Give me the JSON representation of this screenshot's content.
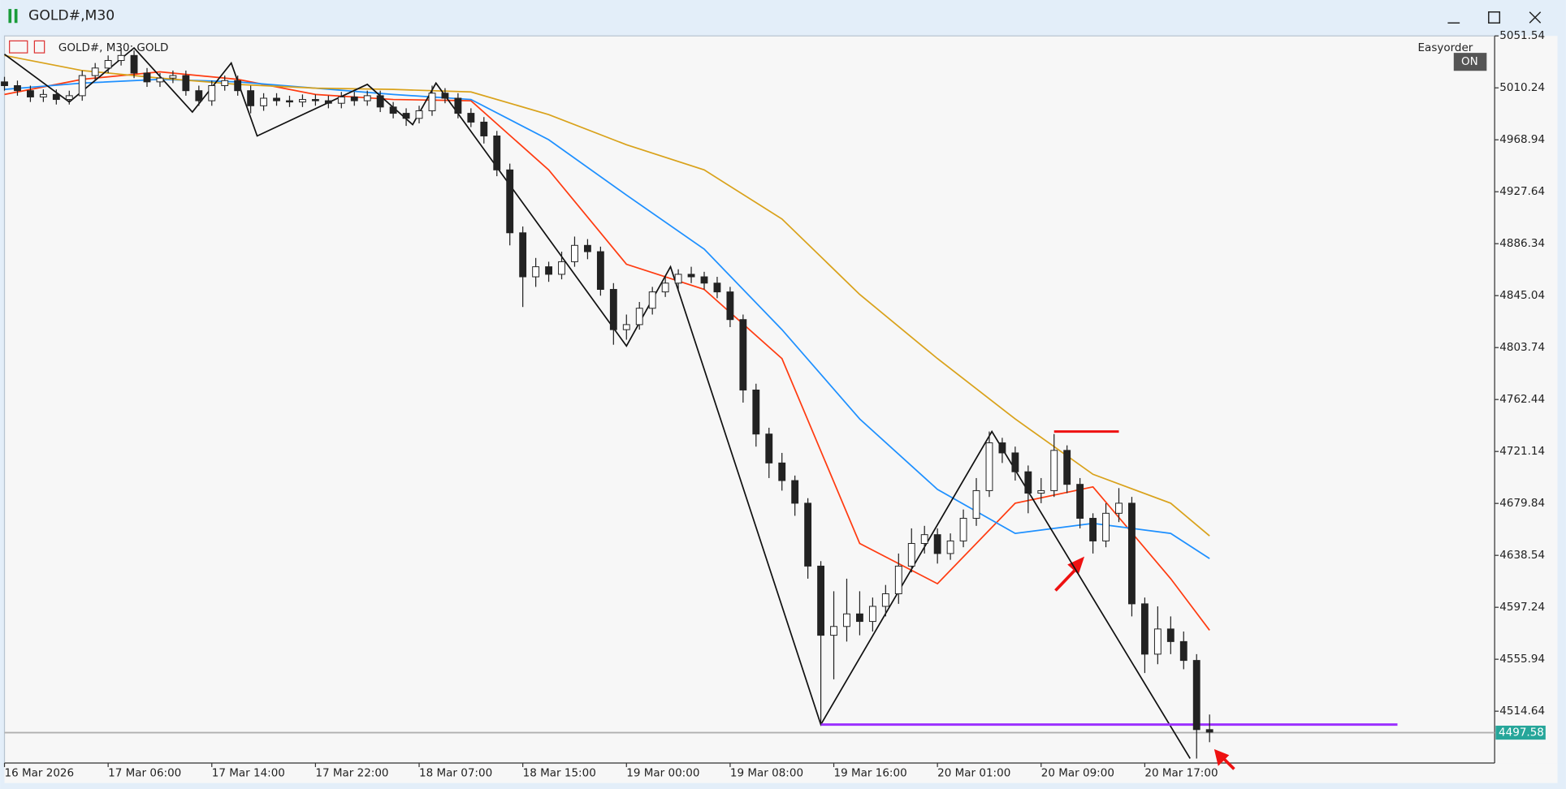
{
  "window": {
    "title": "GOLD#,M30"
  },
  "chart_header": {
    "symbol": "GOLD#, M30:  GOLD"
  },
  "panel": {
    "label": "Easyorder",
    "button": "ON"
  },
  "chart_data": {
    "type": "candlestick",
    "x": [
      0,
      1,
      2,
      3,
      4,
      5,
      6,
      7,
      8,
      9,
      10,
      11,
      12,
      13,
      14,
      15,
      16,
      17,
      18,
      19,
      20,
      21,
      22,
      23,
      24,
      25,
      26,
      27,
      28,
      29,
      30,
      31,
      32,
      33,
      34,
      35,
      36,
      37,
      38,
      39,
      40,
      41,
      42,
      43,
      44,
      45,
      46,
      47,
      48,
      49,
      50,
      51,
      52,
      53,
      54,
      55,
      56,
      57,
      58,
      59,
      60,
      61,
      62,
      63,
      64,
      65,
      66,
      67,
      68,
      69,
      70,
      71,
      72,
      73,
      74,
      75,
      76,
      77,
      78,
      79,
      80,
      81,
      82,
      83,
      84,
      85,
      86,
      87,
      88,
      89,
      90,
      91,
      92,
      93
    ],
    "open": [
      5015,
      5012,
      5008,
      5003,
      5005,
      5001,
      5004,
      5020,
      5026,
      5032,
      5036,
      5022,
      5015,
      5018,
      5020,
      5008,
      5000,
      5012,
      5016,
      5008,
      4996,
      5002,
      5000,
      4999,
      5001,
      5000,
      4998,
      5003,
      5000,
      5004,
      4995,
      4990,
      4986,
      4992,
      5006,
      5002,
      4990,
      4983,
      4972,
      4945,
      4895,
      4860,
      4868,
      4862,
      4872,
      4885,
      4880,
      4850,
      4818,
      4822,
      4835,
      4848,
      4855,
      4862,
      4860,
      4855,
      4848,
      4826,
      4770,
      4735,
      4712,
      4698,
      4680,
      4630,
      4575,
      4582,
      4592,
      4586,
      4598,
      4608,
      4630,
      4648,
      4655,
      4640,
      4650,
      4668,
      4690,
      4728,
      4720,
      4705,
      4688,
      4690,
      4722,
      4695,
      4668,
      4650,
      4672,
      4680,
      4600,
      4560,
      4580,
      4570,
      4555,
      4500
    ],
    "high": [
      5019,
      5016,
      5012,
      5009,
      5009,
      5008,
      5024,
      5030,
      5036,
      5042,
      5040,
      5026,
      5022,
      5024,
      5024,
      5012,
      5016,
      5020,
      5020,
      5012,
      5006,
      5006,
      5004,
      5005,
      5005,
      5004,
      5007,
      5007,
      5008,
      5008,
      4999,
      4994,
      4996,
      5012,
      5010,
      5006,
      4994,
      4987,
      4976,
      4950,
      4900,
      4875,
      4872,
      4880,
      4892,
      4890,
      4884,
      4855,
      4830,
      4840,
      4852,
      4860,
      4866,
      4868,
      4864,
      4860,
      4852,
      4830,
      4775,
      4740,
      4720,
      4702,
      4684,
      4634,
      4610,
      4620,
      4610,
      4605,
      4615,
      4640,
      4660,
      4662,
      4660,
      4656,
      4675,
      4700,
      4737,
      4732,
      4725,
      4710,
      4700,
      4735,
      4726,
      4700,
      4672,
      4680,
      4692,
      4685,
      4605,
      4598,
      4590,
      4578,
      4560,
      4512
    ],
    "low": [
      5008,
      5004,
      4999,
      4999,
      4997,
      4997,
      5000,
      5016,
      5022,
      5028,
      5018,
      5011,
      5011,
      5014,
      5004,
      4996,
      4996,
      5008,
      5004,
      4990,
      4992,
      4996,
      4995,
      4995,
      4996,
      4994,
      4994,
      4996,
      4996,
      4991,
      4986,
      4980,
      4982,
      4988,
      4998,
      4986,
      4979,
      4966,
      4940,
      4885,
      4836,
      4852,
      4856,
      4858,
      4868,
      4874,
      4845,
      4806,
      4810,
      4818,
      4830,
      4844,
      4850,
      4855,
      4850,
      4843,
      4820,
      4760,
      4725,
      4700,
      4690,
      4670,
      4620,
      4504,
      4540,
      4570,
      4575,
      4578,
      4590,
      4600,
      4625,
      4640,
      4632,
      4635,
      4645,
      4662,
      4685,
      4712,
      4698,
      4672,
      4680,
      4685,
      4688,
      4660,
      4640,
      4645,
      4665,
      4590,
      4545,
      4552,
      4560,
      4548,
      4477,
      4490
    ],
    "close": [
      5012,
      5008,
      5003,
      5005,
      5001,
      5004,
      5020,
      5026,
      5032,
      5036,
      5022,
      5015,
      5018,
      5020,
      5008,
      5000,
      5012,
      5016,
      5008,
      4996,
      5002,
      5000,
      4999,
      5001,
      5000,
      4998,
      5003,
      5000,
      5004,
      4995,
      4990,
      4986,
      4992,
      5006,
      5002,
      4990,
      4983,
      4972,
      4945,
      4895,
      4860,
      4868,
      4862,
      4872,
      4885,
      4880,
      4850,
      4818,
      4822,
      4835,
      4848,
      4855,
      4862,
      4860,
      4855,
      4848,
      4826,
      4770,
      4735,
      4712,
      4698,
      4680,
      4630,
      4575,
      4582,
      4592,
      4586,
      4598,
      4608,
      4630,
      4648,
      4655,
      4640,
      4650,
      4668,
      4690,
      4728,
      4720,
      4705,
      4688,
      4690,
      4722,
      4695,
      4668,
      4650,
      4672,
      4680,
      4600,
      4560,
      4580,
      4570,
      4555,
      4500,
      4498
    ],
    "up_color": "#ffffff",
    "down_color": "#222222",
    "edge_color": "#222222",
    "series": [
      {
        "color": "#ff3b10",
        "x": [
          0,
          6,
          12,
          18,
          24,
          30,
          36,
          42,
          48,
          54,
          60,
          66,
          72,
          78,
          84,
          90,
          93
        ],
        "values": [
          5005,
          5017,
          5023,
          5017,
          5005,
          5001,
          5000,
          4945,
          4870,
          4850,
          4795,
          4648,
          4616,
          4680,
          4693,
          4620,
          4579
        ]
      },
      {
        "color": "#1e90ff",
        "x": [
          0,
          6,
          12,
          18,
          24,
          30,
          36,
          42,
          48,
          54,
          60,
          66,
          72,
          78,
          84,
          90,
          93
        ],
        "values": [
          5009,
          5014,
          5017,
          5015,
          5010,
          5005,
          5001,
          4969,
          4925,
          4882,
          4818,
          4747,
          4691,
          4656,
          4664,
          4656,
          4636
        ]
      },
      {
        "color": "#d9a21b",
        "x": [
          0,
          6,
          12,
          18,
          24,
          30,
          36,
          42,
          48,
          54,
          60,
          66,
          72,
          78,
          84,
          90,
          93
        ],
        "values": [
          5036,
          5024,
          5018,
          5013,
          5010,
          5009,
          5007,
          4989,
          4965,
          4945,
          4906,
          4846,
          4795,
          4747,
          4703,
          4680,
          4654
        ]
      },
      {
        "color": "#111111",
        "x": [
          0,
          5,
          10,
          14.5,
          17.5,
          19.5,
          28,
          31.5,
          33.3,
          48,
          51.4,
          63,
          76.2,
          91.5
        ],
        "values": [
          5037,
          4999,
          5042,
          4991,
          5030,
          4972,
          5013,
          4981,
          5014,
          4805,
          4868,
          4504,
          4737,
          4477
        ]
      },
      {
        "color": "#9b30ff",
        "x": [
          63,
          107.5
        ],
        "values": [
          4504,
          4504
        ]
      },
      {
        "color": "#ee1111",
        "x": [
          81,
          86
        ],
        "values": [
          4737,
          4737
        ]
      }
    ],
    "bid": 4497.58,
    "bid_color": "#26a69a",
    "xlim": [
      0,
      115
    ],
    "xticks": [
      {
        "value": 0,
        "label": "16 Mar 2026"
      },
      {
        "value": 8,
        "label": "17 Mar 06:00"
      },
      {
        "value": 16,
        "label": "17 Mar 14:00"
      },
      {
        "value": 24,
        "label": "17 Mar 22:00"
      },
      {
        "value": 32,
        "label": "18 Mar 07:00"
      },
      {
        "value": 40,
        "label": "18 Mar 15:00"
      },
      {
        "value": 48,
        "label": "19 Mar 00:00"
      },
      {
        "value": 56,
        "label": "19 Mar 08:00"
      },
      {
        "value": 64,
        "label": "19 Mar 16:00"
      },
      {
        "value": 72,
        "label": "20 Mar 01:00"
      },
      {
        "value": 80,
        "label": "20 Mar 09:00"
      },
      {
        "value": 88,
        "label": "20 Mar 17:00"
      }
    ],
    "ylim": [
      4473.4,
      5051.54
    ],
    "yticks": [
      5051.54,
      5010.24,
      4968.94,
      4927.64,
      4886.34,
      4845.04,
      4803.74,
      4762.44,
      4721.14,
      4679.84,
      4638.54,
      4597.24,
      4555.94,
      4514.64
    ]
  }
}
